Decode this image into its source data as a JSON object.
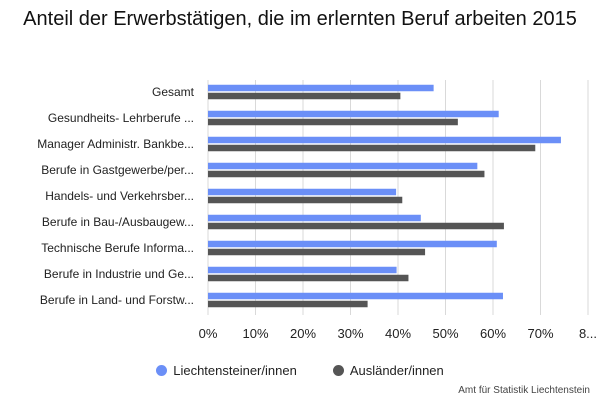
{
  "chart_data": {
    "type": "bar",
    "orientation": "horizontal",
    "title": "Anteil der Erwerbstätigen, die im erlernten Beruf arbeiten 2015",
    "categories": [
      "Gesamt",
      "Gesundheits- Lehrberufe ...",
      "Manager Administr. Bankbe...",
      "Berufe in Gastgewerbe/per...",
      "Handels- und Verkehrsber...",
      "Berufe in Bau-/Ausbaugew...",
      "Technische Berufe Informa...",
      "Berufe in Industrie und Ge...",
      "Berufe in Land- und Forstw..."
    ],
    "series": [
      {
        "name": "Liechtensteiner/innen",
        "color": "#6b8ff7",
        "values": [
          47.5,
          61.2,
          74.3,
          56.7,
          39.6,
          44.8,
          60.8,
          39.7,
          62.1
        ]
      },
      {
        "name": "Ausländer/innen",
        "color": "#555555",
        "values": [
          40.5,
          52.6,
          68.9,
          58.2,
          40.9,
          62.3,
          45.7,
          42.2,
          33.6
        ]
      }
    ],
    "xlim": [
      0,
      80
    ],
    "x_ticks": [
      "0%",
      "10%",
      "20%",
      "30%",
      "40%",
      "50%",
      "60%",
      "70%",
      "8..."
    ],
    "grid": "vertical",
    "legend": "bottom-center",
    "xlabel": "",
    "ylabel": ""
  },
  "source": "Amt für Statistik Liechtenstein"
}
